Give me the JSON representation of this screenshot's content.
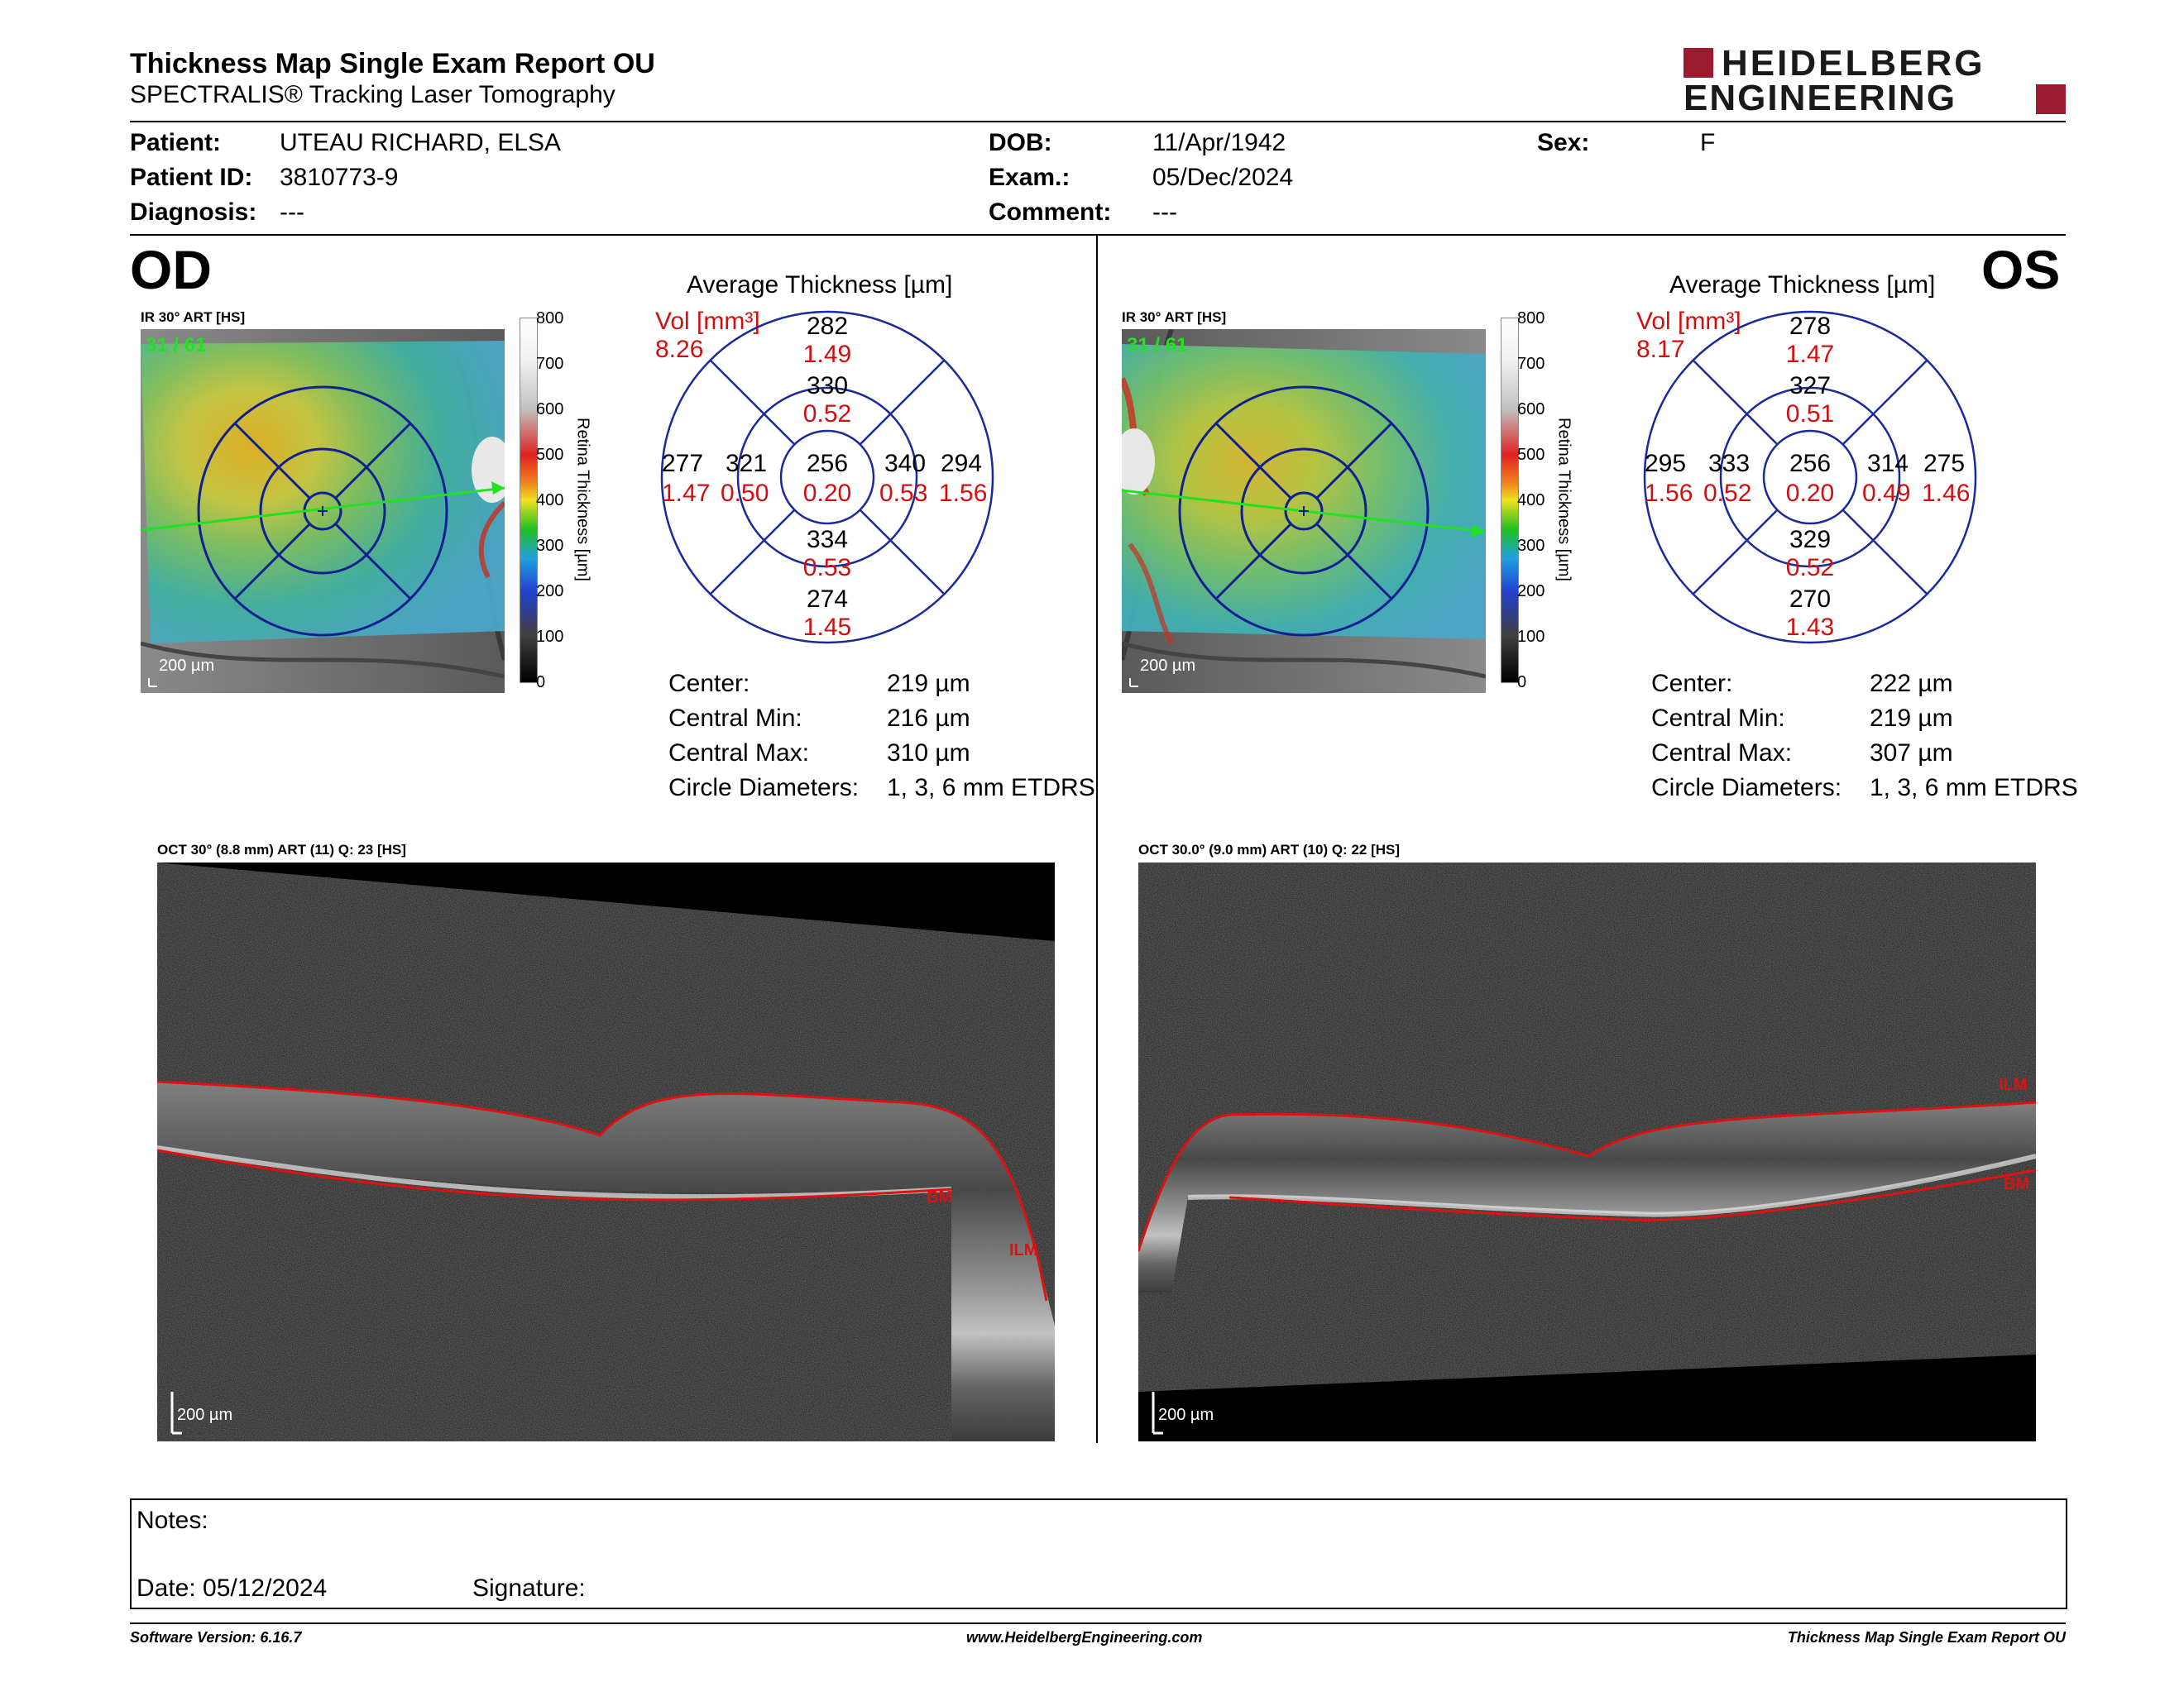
{
  "header": {
    "title": "Thickness Map Single Exam Report OU",
    "subtitle": "SPECTRALIS® Tracking Laser Tomography",
    "logo_line1": "HEIDELBERG",
    "logo_line2": "ENGINEERING",
    "brand_color": "#9b1c2e"
  },
  "patient": {
    "patient_label": "Patient:",
    "patient_value": "UTEAU RICHARD, ELSA",
    "id_label": "Patient ID:",
    "id_value": "3810773-9",
    "diagnosis_label": "Diagnosis:",
    "diagnosis_value": "---",
    "dob_label": "DOB:",
    "dob_value": "11/Apr/1942",
    "exam_label": "Exam.:",
    "exam_value": "05/Dec/2024",
    "comment_label": "Comment:",
    "comment_value": "---",
    "sex_label": "Sex:",
    "sex_value": "F"
  },
  "od": {
    "eye_label": "OD",
    "ir_label": "IR 30° ART [HS]",
    "frame_counter": "31 / 61",
    "scale_label": "200 µm",
    "colorbar_ticks": [
      "800",
      "700",
      "600",
      "500",
      "400",
      "300",
      "200",
      "100",
      "0"
    ],
    "colorbar_title": "Retina  Thickness [µm]",
    "avg_title": "Average Thickness [µm]",
    "vol_label": "Vol [mm³]",
    "vol_value": "8.26",
    "grid": {
      "outer_top": "282",
      "outer_top_vol": "1.49",
      "inner_top": "330",
      "inner_top_vol": "0.52",
      "outer_left": "277",
      "outer_left_vol": "1.47",
      "inner_left": "321",
      "inner_left_vol": "0.50",
      "center": "256",
      "center_vol": "0.20",
      "inner_right": "340",
      "inner_right_vol": "0.53",
      "outer_right": "294",
      "outer_right_vol": "1.56",
      "inner_bottom": "334",
      "inner_bottom_vol": "0.53",
      "outer_bottom": "274",
      "outer_bottom_vol": "1.45"
    },
    "metrics": [
      {
        "label": "Center:",
        "value": "219 µm"
      },
      {
        "label": "Central Min:",
        "value": "216 µm"
      },
      {
        "label": "Central Max:",
        "value": "310 µm"
      },
      {
        "label": "Circle Diameters:",
        "value": "1, 3, 6 mm ETDRS"
      }
    ],
    "oct_label": "OCT 30° (8.8 mm) ART (11) Q: 23 [HS]",
    "oct_scale": "200 µm",
    "bm_label": "BM",
    "ilm_label": "ILM"
  },
  "os": {
    "eye_label": "OS",
    "ir_label": "IR 30° ART [HS]",
    "frame_counter": "31 / 61",
    "scale_label": "200 µm",
    "colorbar_ticks": [
      "800",
      "700",
      "600",
      "500",
      "400",
      "300",
      "200",
      "100",
      "0"
    ],
    "colorbar_title": "Retina  Thickness [µm]",
    "avg_title": "Average Thickness [µm]",
    "vol_label": "Vol [mm³]",
    "vol_value": "8.17",
    "grid": {
      "outer_top": "278",
      "outer_top_vol": "1.47",
      "inner_top": "327",
      "inner_top_vol": "0.51",
      "outer_left": "295",
      "outer_left_vol": "1.56",
      "inner_left": "333",
      "inner_left_vol": "0.52",
      "center": "256",
      "center_vol": "0.20",
      "inner_right": "314",
      "inner_right_vol": "0.49",
      "outer_right": "275",
      "outer_right_vol": "1.46",
      "inner_bottom": "329",
      "inner_bottom_vol": "0.52",
      "outer_bottom": "270",
      "outer_bottom_vol": "1.43"
    },
    "metrics": [
      {
        "label": "Center:",
        "value": "222 µm"
      },
      {
        "label": "Central Min:",
        "value": "219 µm"
      },
      {
        "label": "Central Max:",
        "value": "307 µm"
      },
      {
        "label": "Circle Diameters:",
        "value": "1, 3, 6 mm ETDRS"
      }
    ],
    "oct_label": "OCT 30.0° (9.0 mm) ART (10) Q: 22 [HS]",
    "oct_scale": "200 µm",
    "bm_label": "BM",
    "ilm_label": "ILM"
  },
  "notes": {
    "notes_label": "Notes:",
    "date_label": "Date: 05/12/2024",
    "signature_label": "Signature:"
  },
  "footer": {
    "software": "Software Version: 6.16.7",
    "website": "www.HeidelbergEngineering.com",
    "report": "Thickness Map Single Exam Report OU"
  }
}
